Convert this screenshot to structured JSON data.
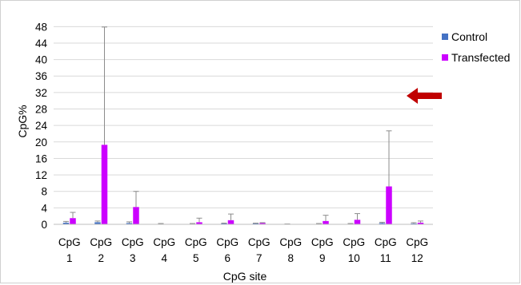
{
  "chart_data": {
    "type": "bar",
    "title": "",
    "xlabel": "CpG site",
    "ylabel": "CpG%",
    "ylim": [
      0,
      50
    ],
    "yticks": [
      0,
      4,
      8,
      12,
      16,
      20,
      24,
      28,
      32,
      36,
      40,
      44,
      48
    ],
    "grid": "horizontal",
    "legend_position": "top-right",
    "categories": [
      [
        "CpG",
        "1"
      ],
      [
        "CpG",
        "2"
      ],
      [
        "CpG",
        "3"
      ],
      [
        "CpG",
        "4"
      ],
      [
        "CpG",
        "5"
      ],
      [
        "CpG",
        "6"
      ],
      [
        "CpG",
        "7"
      ],
      [
        "CpG",
        "8"
      ],
      [
        "CpG",
        "9"
      ],
      [
        "CpG",
        "10"
      ],
      [
        "CpG",
        "11"
      ],
      [
        "CpG",
        "12"
      ]
    ],
    "series": [
      {
        "name": "Control",
        "color": "#4472c4",
        "values": [
          0.4,
          0.5,
          0.3,
          0.1,
          0.1,
          0.2,
          0.2,
          0.0,
          0.1,
          0.1,
          0.3,
          0.2
        ],
        "error_upper": [
          0.7,
          0.8,
          0.6,
          0.2,
          0.2,
          0.3,
          0.3,
          0.1,
          0.2,
          0.2,
          0.5,
          0.4
        ]
      },
      {
        "name": "Transfected",
        "color": "#cc00ff",
        "values": [
          1.5,
          19.3,
          4.2,
          0.1,
          0.5,
          1.0,
          0.3,
          0.0,
          0.8,
          1.1,
          9.2,
          0.4
        ],
        "error_upper": [
          2.9,
          47.9,
          8.0,
          0.1,
          1.5,
          2.5,
          0.4,
          0.0,
          2.2,
          2.6,
          22.7,
          0.8
        ]
      }
    ],
    "annotation": {
      "type": "arrow",
      "direction": "left",
      "color": "#c00000",
      "points_at_value": 32
    }
  }
}
